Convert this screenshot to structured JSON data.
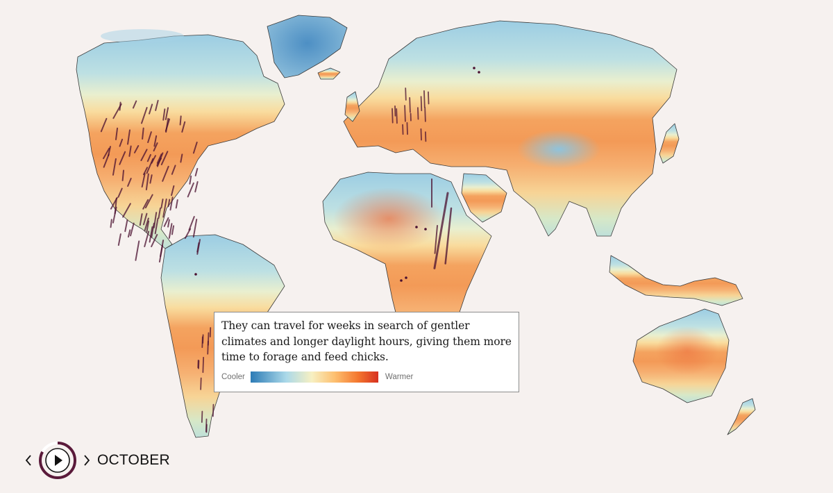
{
  "map": {
    "legend": {
      "low_label": "Cooler",
      "high_label": "Warmer",
      "colors": [
        "#2c7bb6",
        "#abd9e9",
        "#f7f0c2",
        "#fdbf6f",
        "#f4772e",
        "#d7301f"
      ]
    },
    "track_color": "#4b1030",
    "background": "#f6f1ef"
  },
  "info_card": {
    "text": "They can travel for weeks in search of gentler climates and longer daylight hours, giving them more time to forage and feed chicks."
  },
  "controls": {
    "month": "OCTOBER",
    "progress": 0.83,
    "prev_icon": "chevron-left-icon",
    "play_icon": "play-icon",
    "next_icon": "chevron-right-icon",
    "accent": "#5a1a3a"
  }
}
